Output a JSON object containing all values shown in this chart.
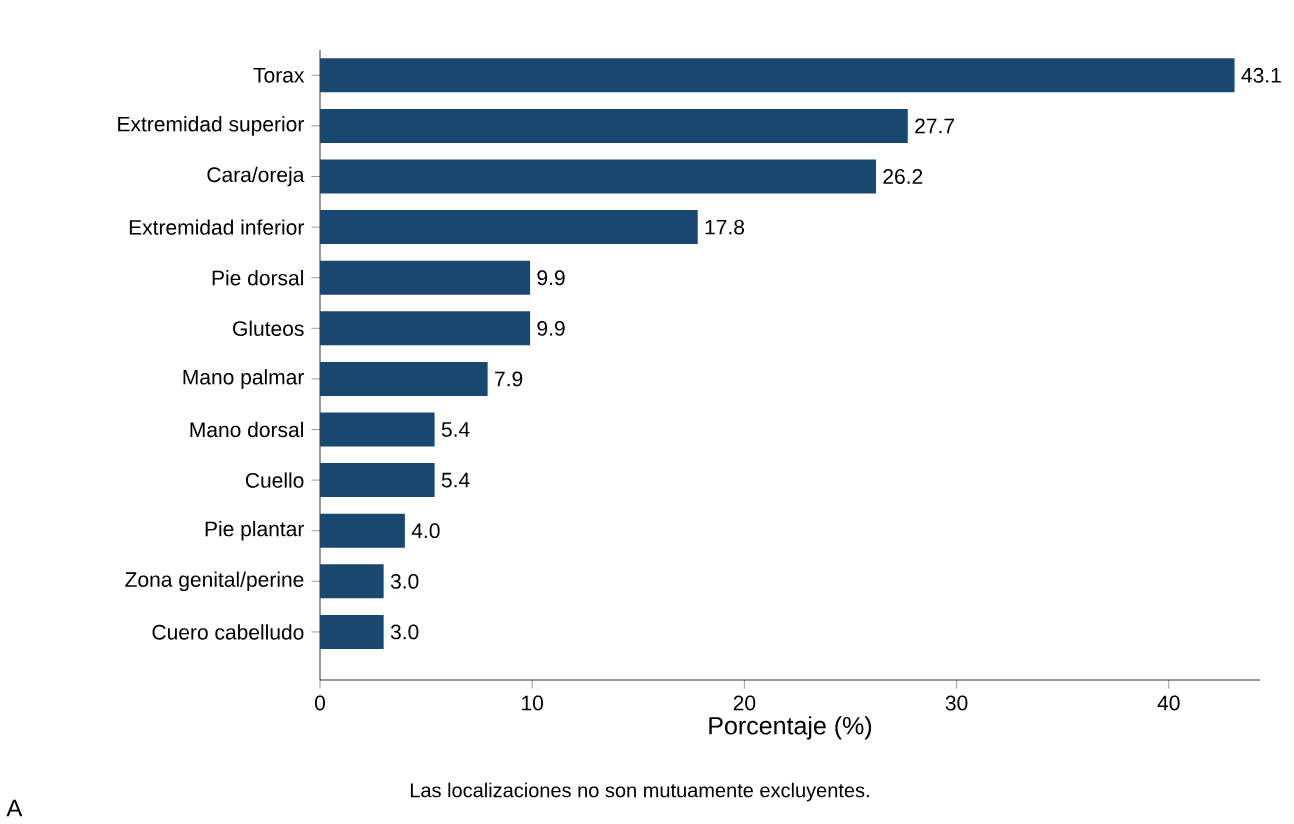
{
  "chart_data": {
    "type": "bar",
    "orientation": "horizontal",
    "xlabel": "Porcentaje (%)",
    "categories": [
      "Torax",
      "Extremidad superior",
      "Cara/oreja",
      "Extremidad inferior",
      "Pie dorsal",
      "Gluteos",
      "Mano palmar",
      "Mano dorsal",
      "Cuello",
      "Pie plantar",
      "Zona genital/perine",
      "Cuero cabelludo"
    ],
    "values": [
      43.1,
      27.7,
      26.2,
      17.8,
      9.9,
      9.9,
      7.9,
      5.4,
      5.4,
      4.0,
      3.0,
      3.0
    ],
    "value_labels": [
      "43.1",
      "27.7",
      "26.2",
      "17.8",
      "9.9",
      "9.9",
      "7.9",
      "5.4",
      "5.4",
      "4.0",
      "3.0",
      "3.0"
    ],
    "color": "#1a476f",
    "xlim": [
      0,
      44.3
    ],
    "xticks": [
      0,
      10,
      20,
      30,
      40
    ],
    "grid": false,
    "annotations": [
      "Las localizaciones no son mutuamente excluyentes.",
      "A"
    ]
  }
}
